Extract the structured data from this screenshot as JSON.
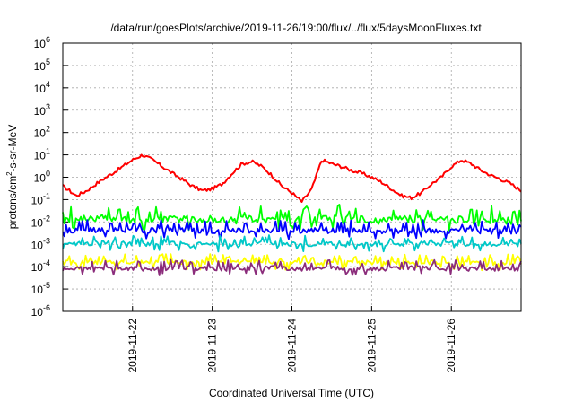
{
  "chart_data": {
    "type": "line",
    "title": "/data/run/goesPlots/archive/2019-11-26/19:00/flux/../flux/5daysMoonFluxes.txt",
    "xlabel": "Coordinated Universal Time (UTC)",
    "ylabel_base": "protons/cm",
    "ylabel_sup": "2",
    "ylabel_rest": "-s-sr-MeV",
    "yscale": "log",
    "ylim": [
      1e-06,
      1000000.0
    ],
    "xlim": [
      "2019-11-21 03:00",
      "2019-11-26 21:00"
    ],
    "x_ticks": [
      "2019-11-22",
      "2019-11-23",
      "2019-11-24",
      "2019-11-25",
      "2019-11-26"
    ],
    "y_ticks": [
      {
        "base": "10",
        "exp": "-6"
      },
      {
        "base": "10",
        "exp": "-5"
      },
      {
        "base": "10",
        "exp": "-4"
      },
      {
        "base": "10",
        "exp": "-3"
      },
      {
        "base": "10",
        "exp": "-2"
      },
      {
        "base": "10",
        "exp": "-1"
      },
      {
        "base": "10",
        "exp": "0"
      },
      {
        "base": "10",
        "exp": "1"
      },
      {
        "base": "10",
        "exp": "2"
      },
      {
        "base": "10",
        "exp": "3"
      },
      {
        "base": "10",
        "exp": "4"
      },
      {
        "base": "10",
        "exp": "5"
      },
      {
        "base": "10",
        "exp": "6"
      }
    ],
    "grid": true,
    "legend": "none",
    "series": [
      {
        "color": "#ff0000",
        "x_hours": [
          0,
          2,
          4,
          6,
          8,
          10,
          12,
          15,
          18,
          21,
          24,
          27,
          30,
          33,
          36,
          39,
          42,
          45,
          48,
          51,
          54,
          57,
          60,
          63,
          66,
          69,
          72,
          75,
          78,
          81,
          84,
          87,
          90,
          93,
          96,
          99,
          102,
          105,
          108,
          111,
          114,
          117,
          120,
          123,
          126,
          129,
          132,
          135,
          138
        ],
        "values": [
          0.4,
          0.25,
          0.15,
          0.2,
          0.3,
          0.5,
          0.8,
          1.5,
          3,
          6,
          10,
          6,
          3,
          1.5,
          0.8,
          0.4,
          0.25,
          0.3,
          0.5,
          1.5,
          4,
          5,
          3,
          1.2,
          0.4,
          0.2,
          0.08,
          0.3,
          6,
          4,
          3,
          2,
          1.5,
          1,
          0.6,
          0.3,
          0.15,
          0.12,
          0.2,
          0.5,
          1,
          3,
          6,
          4,
          2,
          1.2,
          0.8,
          0.5,
          0.25
        ]
      },
      {
        "color": "#00ff00",
        "x_hours": [
          0,
          12,
          24,
          36,
          48,
          60,
          72,
          84,
          96,
          108,
          120,
          132,
          138
        ],
        "values": [
          0.012,
          0.015,
          0.012,
          0.014,
          0.012,
          0.013,
          0.012,
          0.014,
          0.012,
          0.013,
          0.012,
          0.012,
          0.011
        ]
      },
      {
        "color": "#0000ff",
        "x_hours": [
          0,
          12,
          24,
          36,
          48,
          60,
          72,
          84,
          96,
          108,
          120,
          132,
          138
        ],
        "values": [
          0.004,
          0.0045,
          0.004,
          0.0042,
          0.004,
          0.0041,
          0.004,
          0.0042,
          0.004,
          0.0041,
          0.004,
          0.0038,
          0.0035
        ]
      },
      {
        "color": "#00c8c8",
        "x_hours": [
          0,
          12,
          24,
          36,
          48,
          60,
          72,
          84,
          96,
          108,
          120,
          132,
          138
        ],
        "values": [
          0.001,
          0.0012,
          0.001,
          0.0011,
          0.001,
          0.0011,
          0.001,
          0.0011,
          0.001,
          0.0011,
          0.001,
          0.001,
          0.001
        ]
      },
      {
        "color": "#ffff00",
        "x_hours": [
          0,
          12,
          24,
          36,
          48,
          60,
          72,
          84,
          96,
          108,
          120,
          132,
          138
        ],
        "values": [
          0.00015,
          0.00016,
          0.00015,
          0.00016,
          0.00015,
          0.00016,
          0.00015,
          0.00016,
          0.00015,
          0.00016,
          0.00015,
          0.00015,
          0.00015
        ]
      },
      {
        "color": "#8b2c7b",
        "x_hours": [
          0,
          12,
          24,
          36,
          48,
          60,
          72,
          84,
          96,
          108,
          120,
          132,
          138
        ],
        "values": [
          8e-05,
          9e-05,
          8e-05,
          9e-05,
          8e-05,
          9e-05,
          8e-05,
          9e-05,
          8e-05,
          9e-05,
          8e-05,
          8e-05,
          8e-05
        ]
      }
    ]
  }
}
